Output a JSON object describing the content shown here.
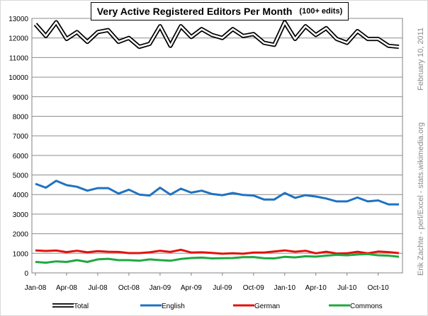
{
  "chart_data": {
    "type": "line",
    "title": "Very Active Registered Editors  Per Month",
    "subtitle": "(100+ edits)",
    "xlabel": "",
    "ylabel": "",
    "x_ticks": [
      "Jan-08",
      "Apr-08",
      "Jul-08",
      "Oct-08",
      "Jan-09",
      "Apr-09",
      "Jul-09",
      "Oct-09",
      "Jan-10",
      "Apr-10",
      "Jul-10",
      "Oct-10"
    ],
    "y_ticks": [
      "0",
      "1000",
      "2000",
      "3000",
      "4000",
      "5000",
      "6000",
      "7000",
      "8000",
      "9000",
      "10000",
      "11000",
      "12000",
      "13000"
    ],
    "ylim": [
      0,
      13000
    ],
    "grid": true,
    "legend_position": "bottom",
    "x": [
      "2008-01",
      "2008-02",
      "2008-03",
      "2008-04",
      "2008-05",
      "2008-06",
      "2008-07",
      "2008-08",
      "2008-09",
      "2008-10",
      "2008-11",
      "2008-12",
      "2009-01",
      "2009-02",
      "2009-03",
      "2009-04",
      "2009-05",
      "2009-06",
      "2009-07",
      "2009-08",
      "2009-09",
      "2009-10",
      "2009-11",
      "2009-12",
      "2010-01",
      "2010-02",
      "2010-03",
      "2010-04",
      "2010-05",
      "2010-06",
      "2010-07",
      "2010-08",
      "2010-09",
      "2010-10",
      "2010-11",
      "2010-12"
    ],
    "series": [
      {
        "name": "Total",
        "color": "#000000",
        "style": "double",
        "values": [
          12700,
          12100,
          12800,
          11950,
          12300,
          11800,
          12300,
          12400,
          11800,
          12000,
          11550,
          11700,
          12600,
          11600,
          12600,
          12050,
          12450,
          12150,
          12000,
          12450,
          12100,
          12200,
          11750,
          11650,
          12800,
          11950,
          12600,
          12150,
          12500,
          11950,
          11750,
          12350,
          11950,
          11950,
          11600,
          11550
        ]
      },
      {
        "name": "English",
        "color": "#1f72c2",
        "style": "solid",
        "values": [
          4550,
          4350,
          4700,
          4480,
          4400,
          4200,
          4330,
          4330,
          4050,
          4250,
          4000,
          3950,
          4350,
          4000,
          4300,
          4100,
          4200,
          4030,
          3970,
          4080,
          3980,
          3950,
          3750,
          3750,
          4080,
          3830,
          3970,
          3900,
          3800,
          3650,
          3650,
          3850,
          3650,
          3700,
          3500,
          3500
        ]
      },
      {
        "name": "German",
        "color": "#e4110d",
        "style": "solid",
        "values": [
          1150,
          1120,
          1140,
          1060,
          1130,
          1050,
          1110,
          1080,
          1070,
          1010,
          1010,
          1050,
          1130,
          1070,
          1180,
          1040,
          1050,
          1020,
          980,
          1000,
          980,
          1040,
          1040,
          1090,
          1150,
          1080,
          1130,
          1000,
          1080,
          990,
          1000,
          1080,
          1000,
          1090,
          1060,
          1010
        ]
      },
      {
        "name": "Commons",
        "color": "#1fa83f",
        "style": "solid",
        "values": [
          560,
          520,
          590,
          560,
          650,
          560,
          690,
          720,
          650,
          650,
          620,
          690,
          650,
          620,
          710,
          760,
          780,
          740,
          750,
          760,
          800,
          810,
          750,
          740,
          820,
          790,
          850,
          830,
          880,
          920,
          900,
          940,
          960,
          900,
          880,
          820
        ]
      }
    ]
  },
  "side_notes": {
    "date": "February 10, 2011",
    "credit": "Erik Zachte - perl/Excel - stats.wikimedia.org"
  }
}
